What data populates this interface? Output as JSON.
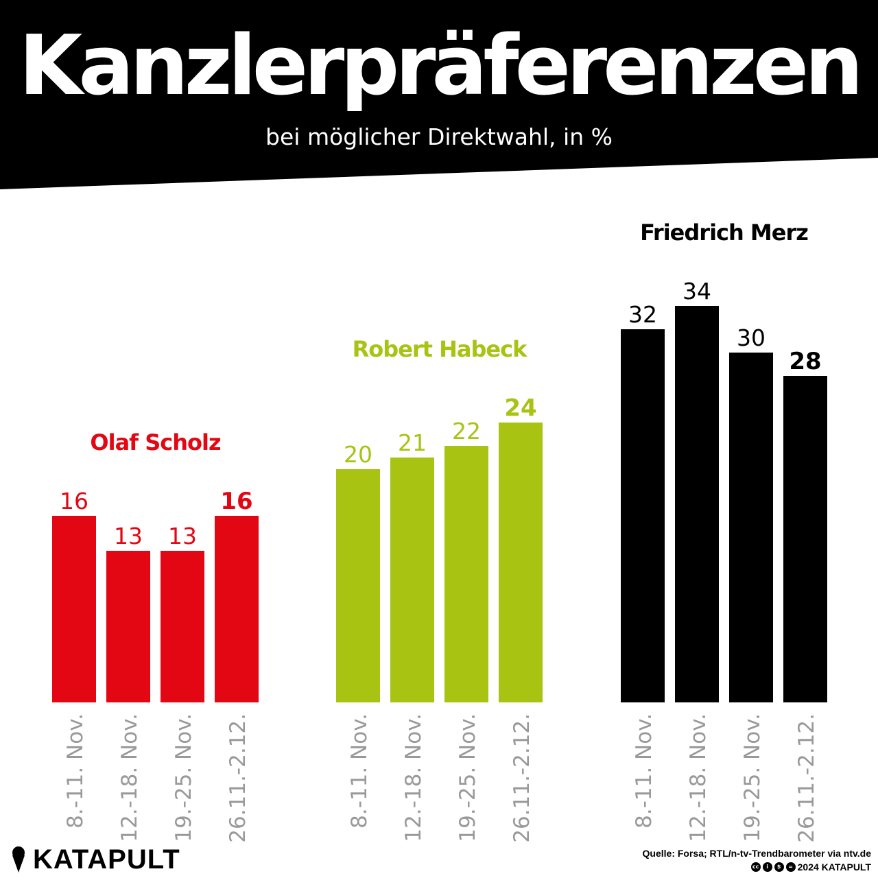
{
  "header": {
    "title": "Kanzlerpräferenzen",
    "subtitle": "bei möglicher Direktwahl, in %"
  },
  "chart_data": {
    "type": "bar",
    "title": "Kanzlerpräferenzen",
    "subtitle": "bei möglicher Direktwahl, in %",
    "categories": [
      "8.-11. Nov.",
      "12.-18. Nov.",
      "19.-25. Nov.",
      "26.11.-2.12."
    ],
    "series": [
      {
        "name": "Olaf Scholz",
        "color": "#e30613",
        "values": [
          16,
          13,
          13,
          16
        ]
      },
      {
        "name": "Robert Habeck",
        "color": "#a8c312",
        "values": [
          20,
          21,
          22,
          24
        ]
      },
      {
        "name": "Friedrich Merz",
        "color": "#000000",
        "values": [
          32,
          34,
          30,
          28
        ]
      }
    ],
    "ylim": [
      0,
      34
    ],
    "grid": false,
    "highlight_last": true,
    "tick_color": "#999999"
  },
  "footer": {
    "logo": "KATAPULT",
    "source": "Quelle: Forsa; RTL/n-tv-Trendbarometer via ntv.de",
    "license": "2024 KATAPULT"
  }
}
